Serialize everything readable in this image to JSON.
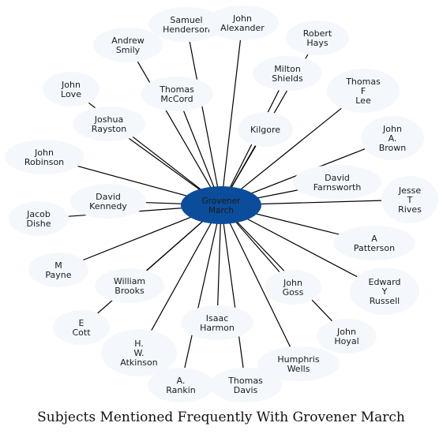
{
  "diagram": {
    "center": {
      "label": "Grovener March",
      "color": "#0b4d9a"
    },
    "node_color": "#f4f8fd",
    "nodes": [
      "Samuel Henderson",
      "John Alexander",
      "Robert Hays",
      "Andrew Smily",
      "Milton Shields",
      "Thomas F Lee",
      "John Love",
      "Thomas McCord",
      "Joshua Rayston",
      "Kilgore",
      "John A. Brown",
      "John Robinson",
      "David Farnsworth",
      "David Kennedy",
      "Jesse T Rives",
      "Jacob Dishe",
      "A Patterson",
      "M Payne",
      "William Brooks",
      "John Goss",
      "Edward Y Russell",
      "E Cott",
      "Isaac Harmon",
      "John Hoyal",
      "H. W. Atkinson",
      "Humphris Wells",
      "A. Rankin",
      "Thomas Davis"
    ],
    "caption": "Subjects Mentioned Frequently With Grovener March"
  }
}
